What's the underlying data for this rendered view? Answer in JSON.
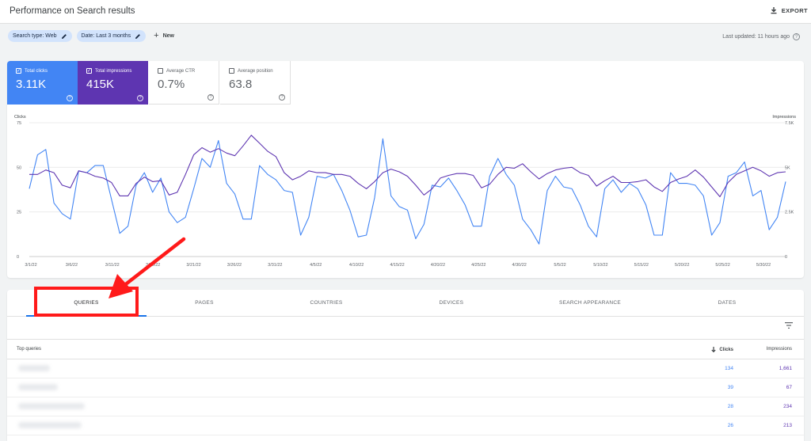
{
  "header": {
    "title": "Performance on Search results",
    "export_label": "EXPORT"
  },
  "filters": {
    "chips": [
      "Search type: Web",
      "Date: Last 3 months"
    ],
    "new_label": "New",
    "last_updated": "Last updated: 11 hours ago"
  },
  "metrics": {
    "clicks": {
      "label": "Total clicks",
      "value": "3.11K"
    },
    "impressions": {
      "label": "Total impressions",
      "value": "415K"
    },
    "ctr": {
      "label": "Average CTR",
      "value": "0.7%"
    },
    "position": {
      "label": "Average position",
      "value": "63.8"
    }
  },
  "colors": {
    "clicks": "#4285f4",
    "impressions": "#5e35b1",
    "annotation": "#ff1a1a"
  },
  "chart_data": {
    "type": "line",
    "y_left_label": "Clicks",
    "y_right_label": "Impressions",
    "y_left_ticks": [
      "0",
      "25",
      "50",
      "75"
    ],
    "y_right_ticks": [
      "0",
      "2.5K",
      "5K",
      "7.5K"
    ],
    "ylim_left": [
      0,
      75
    ],
    "ylim_right": [
      0,
      7500
    ],
    "x_ticks": [
      "3/1/22",
      "3/6/22",
      "3/11/22",
      "3/16/22",
      "3/21/22",
      "3/26/22",
      "3/31/22",
      "4/5/22",
      "4/10/22",
      "4/15/22",
      "4/20/22",
      "4/25/22",
      "4/30/22",
      "5/5/22",
      "5/10/22",
      "5/15/22",
      "5/20/22",
      "5/25/22",
      "5/30/22"
    ],
    "x_start": "3/1/22",
    "x_end": "5/30/22",
    "series": [
      {
        "name": "Clicks",
        "axis": "left",
        "values": [
          38,
          57,
          60,
          30,
          24,
          21,
          48,
          47,
          51,
          51,
          32,
          13,
          17,
          40,
          47,
          36,
          44,
          25,
          19,
          22,
          38,
          55,
          50,
          65,
          41,
          35,
          21,
          21,
          51,
          46,
          43,
          37,
          36,
          12,
          22,
          45,
          44,
          46,
          37,
          26,
          11,
          12,
          33,
          66,
          34,
          28,
          26,
          10,
          18,
          40,
          39,
          44,
          37,
          29,
          17,
          17,
          45,
          55,
          46,
          40,
          21,
          15,
          7,
          37,
          45,
          39,
          38,
          29,
          17,
          11,
          38,
          43,
          36,
          41,
          38,
          29,
          12,
          12,
          47,
          41,
          41,
          40,
          34,
          12,
          19,
          45,
          47,
          53,
          34,
          37,
          15,
          22,
          42
        ]
      },
      {
        "name": "Impressions",
        "axis": "right",
        "values": [
          4600,
          4600,
          4850,
          4700,
          4000,
          3850,
          4800,
          4700,
          4500,
          4400,
          4150,
          3400,
          3400,
          4100,
          4450,
          4200,
          4250,
          3450,
          3600,
          4600,
          5700,
          6100,
          5850,
          6050,
          5800,
          5650,
          6200,
          6800,
          6350,
          5900,
          5600,
          4700,
          4300,
          4500,
          4800,
          4700,
          4700,
          4600,
          4600,
          4500,
          4100,
          3800,
          4200,
          4700,
          4900,
          4750,
          4500,
          4000,
          3450,
          3800,
          4400,
          4550,
          4650,
          4650,
          4550,
          3850,
          4050,
          4600,
          5000,
          4950,
          5200,
          4750,
          4350,
          4650,
          4850,
          4950,
          5000,
          4700,
          4550,
          3950,
          4250,
          4500,
          4150,
          4150,
          4200,
          4300,
          3900,
          3650,
          4150,
          4350,
          4500,
          4850,
          4450,
          3900,
          3350,
          4150,
          4600,
          4800,
          5000,
          4800,
          4500,
          4700,
          4750
        ]
      }
    ]
  },
  "tabs": [
    "QUERIES",
    "PAGES",
    "COUNTRIES",
    "DEVICES",
    "SEARCH APPEARANCE",
    "DATES"
  ],
  "table": {
    "headers": {
      "query": "Top queries",
      "clicks": "Clicks",
      "impressions": "Impressions"
    },
    "rows": [
      {
        "clicks": "134",
        "impressions": "1,661"
      },
      {
        "clicks": "39",
        "impressions": "67"
      },
      {
        "clicks": "28",
        "impressions": "234"
      },
      {
        "clicks": "26",
        "impressions": "213"
      }
    ]
  }
}
